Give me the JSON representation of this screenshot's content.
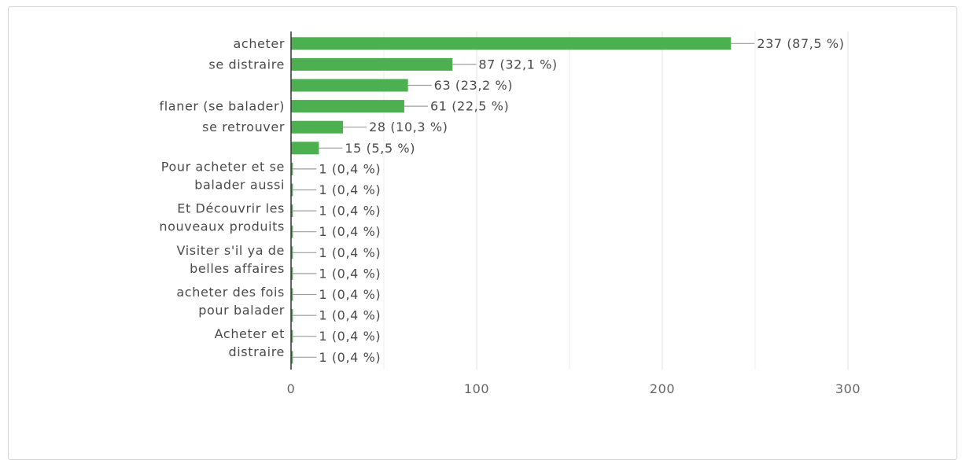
{
  "chart_data": {
    "type": "bar",
    "orientation": "horizontal",
    "categories": [
      "acheter",
      "se distraire",
      "",
      "flaner (se balader)",
      "se retrouver",
      "",
      "Pour acheter et se balader aussi",
      "",
      "Et Découvrir les nouveaux produits",
      "",
      "Visiter s'il ya de belles affaires",
      "",
      "acheter des fois pour balader",
      "",
      "Acheter et distraire",
      ""
    ],
    "category_label_lines": [
      [
        "acheter"
      ],
      [
        "se distraire"
      ],
      [],
      [
        "flaner (se balader)"
      ],
      [
        "se retrouver"
      ],
      [],
      [
        "Pour acheter et se",
        "balader aussi"
      ],
      [],
      [
        "Et Découvrir les",
        "nouveaux produits"
      ],
      [],
      [
        "Visiter s'il ya de",
        "belles affaires"
      ],
      [],
      [
        "acheter des fois",
        "pour balader"
      ],
      [],
      [
        "Acheter et",
        "distraire"
      ],
      []
    ],
    "values": [
      237,
      87,
      63,
      61,
      28,
      15,
      1,
      1,
      1,
      1,
      1,
      1,
      1,
      1,
      1,
      1
    ],
    "data_labels": [
      "237 (87,5 %)",
      "87 (32,1 %)",
      "63 (23,2 %)",
      "61 (22,5 %)",
      "28 (10,3 %)",
      "15 (5,5 %)",
      "1 (0,4 %)",
      "1 (0,4 %)",
      "1 (0,4 %)",
      "1 (0,4 %)",
      "1 (0,4 %)",
      "1 (0,4 %)",
      "1 (0,4 %)",
      "1 (0,4 %)",
      "1 (0,4 %)",
      "1 (0,4 %)"
    ],
    "xlim": [
      0,
      300
    ],
    "xticks": [
      0,
      100,
      200,
      300
    ],
    "grid": true,
    "bar_color": "#4caf50",
    "title": "",
    "xlabel": "",
    "ylabel": ""
  }
}
